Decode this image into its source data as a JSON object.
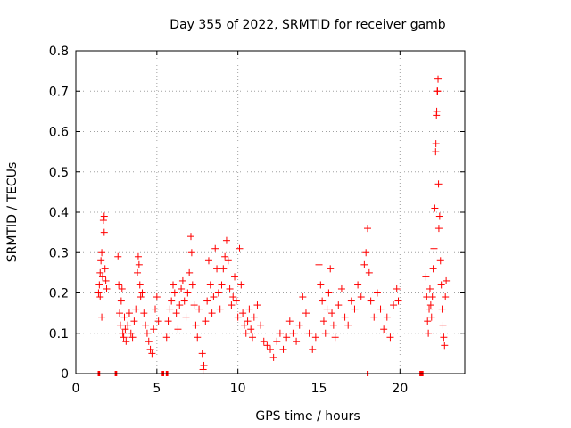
{
  "chart_data": {
    "type": "scatter",
    "title": "Day 355 of 2022, SRMTID for receiver gamb",
    "xlabel": "GPS time / hours",
    "ylabel": "SRMTID / TECUs",
    "xlim": [
      0,
      24
    ],
    "ylim": [
      0,
      0.8
    ],
    "xticks": [
      0,
      5,
      10,
      15,
      20
    ],
    "yticks": [
      0,
      0.1,
      0.2,
      0.3,
      0.4,
      0.5,
      0.6,
      0.7,
      0.8
    ],
    "grid": true,
    "marker_color": "#ff0000",
    "marker": "plus",
    "series": [
      {
        "name": "SRMTID",
        "points": [
          [
            1.4,
            0.2
          ],
          [
            1.45,
            0.22
          ],
          [
            1.5,
            0.19
          ],
          [
            1.5,
            0.25
          ],
          [
            1.55,
            0.28
          ],
          [
            1.6,
            0.14
          ],
          [
            1.6,
            0.3
          ],
          [
            1.65,
            0.24
          ],
          [
            1.7,
            0.38
          ],
          [
            1.75,
            0.39
          ],
          [
            1.75,
            0.35
          ],
          [
            1.8,
            0.26
          ],
          [
            1.85,
            0.23
          ],
          [
            1.9,
            0.21
          ],
          [
            2.6,
            0.29
          ],
          [
            2.65,
            0.22
          ],
          [
            2.7,
            0.15
          ],
          [
            2.75,
            0.12
          ],
          [
            2.8,
            0.18
          ],
          [
            2.85,
            0.21
          ],
          [
            2.9,
            0.1
          ],
          [
            2.95,
            0.09
          ],
          [
            3.0,
            0.14
          ],
          [
            3.05,
            0.11
          ],
          [
            3.1,
            0.08
          ],
          [
            3.2,
            0.12
          ],
          [
            3.3,
            0.15
          ],
          [
            3.4,
            0.1
          ],
          [
            3.5,
            0.09
          ],
          [
            3.6,
            0.13
          ],
          [
            3.7,
            0.16
          ],
          [
            3.8,
            0.25
          ],
          [
            3.85,
            0.29
          ],
          [
            3.9,
            0.27
          ],
          [
            3.95,
            0.22
          ],
          [
            4.0,
            0.19
          ],
          [
            4.1,
            0.2
          ],
          [
            4.2,
            0.15
          ],
          [
            4.3,
            0.12
          ],
          [
            4.4,
            0.1
          ],
          [
            4.5,
            0.08
          ],
          [
            4.6,
            0.06
          ],
          [
            4.7,
            0.05
          ],
          [
            4.8,
            0.11
          ],
          [
            4.9,
            0.16
          ],
          [
            5.0,
            0.19
          ],
          [
            5.1,
            0.13
          ],
          [
            5.6,
            0.09
          ],
          [
            5.7,
            0.13
          ],
          [
            5.8,
            0.16
          ],
          [
            5.9,
            0.18
          ],
          [
            6.0,
            0.22
          ],
          [
            6.1,
            0.2
          ],
          [
            6.2,
            0.15
          ],
          [
            6.3,
            0.11
          ],
          [
            6.4,
            0.17
          ],
          [
            6.5,
            0.21
          ],
          [
            6.6,
            0.23
          ],
          [
            6.7,
            0.18
          ],
          [
            6.8,
            0.14
          ],
          [
            6.9,
            0.2
          ],
          [
            7.0,
            0.25
          ],
          [
            7.1,
            0.34
          ],
          [
            7.15,
            0.3
          ],
          [
            7.2,
            0.22
          ],
          [
            7.3,
            0.17
          ],
          [
            7.4,
            0.12
          ],
          [
            7.5,
            0.09
          ],
          [
            7.6,
            0.16
          ],
          [
            7.8,
            0.05
          ],
          [
            7.85,
            0.01
          ],
          [
            7.9,
            0.02
          ],
          [
            8.0,
            0.13
          ],
          [
            8.1,
            0.18
          ],
          [
            8.2,
            0.28
          ],
          [
            8.3,
            0.22
          ],
          [
            8.4,
            0.15
          ],
          [
            8.5,
            0.19
          ],
          [
            8.6,
            0.31
          ],
          [
            8.7,
            0.26
          ],
          [
            8.8,
            0.2
          ],
          [
            8.9,
            0.16
          ],
          [
            9.0,
            0.22
          ],
          [
            9.1,
            0.26
          ],
          [
            9.2,
            0.29
          ],
          [
            9.3,
            0.33
          ],
          [
            9.4,
            0.28
          ],
          [
            9.5,
            0.21
          ],
          [
            9.6,
            0.17
          ],
          [
            9.7,
            0.19
          ],
          [
            9.8,
            0.24
          ],
          [
            9.9,
            0.18
          ],
          [
            10.0,
            0.14
          ],
          [
            10.1,
            0.31
          ],
          [
            10.2,
            0.22
          ],
          [
            10.3,
            0.15
          ],
          [
            10.4,
            0.12
          ],
          [
            10.5,
            0.1
          ],
          [
            10.6,
            0.13
          ],
          [
            10.7,
            0.16
          ],
          [
            10.8,
            0.11
          ],
          [
            10.9,
            0.09
          ],
          [
            11.0,
            0.14
          ],
          [
            11.2,
            0.17
          ],
          [
            11.4,
            0.12
          ],
          [
            11.6,
            0.08
          ],
          [
            11.8,
            0.07
          ],
          [
            12.0,
            0.06
          ],
          [
            12.2,
            0.04
          ],
          [
            12.4,
            0.08
          ],
          [
            12.6,
            0.1
          ],
          [
            12.8,
            0.06
          ],
          [
            13.0,
            0.09
          ],
          [
            13.2,
            0.13
          ],
          [
            13.4,
            0.1
          ],
          [
            13.6,
            0.08
          ],
          [
            13.8,
            0.12
          ],
          [
            14.0,
            0.19
          ],
          [
            14.2,
            0.15
          ],
          [
            14.4,
            0.1
          ],
          [
            14.6,
            0.06
          ],
          [
            14.8,
            0.09
          ],
          [
            15.0,
            0.27
          ],
          [
            15.1,
            0.22
          ],
          [
            15.2,
            0.18
          ],
          [
            15.3,
            0.13
          ],
          [
            15.4,
            0.1
          ],
          [
            15.5,
            0.16
          ],
          [
            15.6,
            0.2
          ],
          [
            15.7,
            0.26
          ],
          [
            15.8,
            0.15
          ],
          [
            15.9,
            0.12
          ],
          [
            16.0,
            0.09
          ],
          [
            16.2,
            0.17
          ],
          [
            16.4,
            0.21
          ],
          [
            16.6,
            0.14
          ],
          [
            16.8,
            0.12
          ],
          [
            17.0,
            0.18
          ],
          [
            17.2,
            0.16
          ],
          [
            17.4,
            0.22
          ],
          [
            17.6,
            0.19
          ],
          [
            17.8,
            0.27
          ],
          [
            17.9,
            0.3
          ],
          [
            18.0,
            0.36
          ],
          [
            18.1,
            0.25
          ],
          [
            18.2,
            0.18
          ],
          [
            18.4,
            0.14
          ],
          [
            18.6,
            0.2
          ],
          [
            18.8,
            0.16
          ],
          [
            19.0,
            0.11
          ],
          [
            19.2,
            0.14
          ],
          [
            19.4,
            0.09
          ],
          [
            19.6,
            0.17
          ],
          [
            19.8,
            0.21
          ],
          [
            19.9,
            0.18
          ],
          [
            21.6,
            0.24
          ],
          [
            21.65,
            0.19
          ],
          [
            21.7,
            0.13
          ],
          [
            21.75,
            0.1
          ],
          [
            21.8,
            0.16
          ],
          [
            21.85,
            0.21
          ],
          [
            21.9,
            0.17
          ],
          [
            21.95,
            0.14
          ],
          [
            22.0,
            0.19
          ],
          [
            22.05,
            0.26
          ],
          [
            22.1,
            0.31
          ],
          [
            22.15,
            0.41
          ],
          [
            22.2,
            0.55
          ],
          [
            22.22,
            0.57
          ],
          [
            22.25,
            0.64
          ],
          [
            22.27,
            0.65
          ],
          [
            22.3,
            0.7
          ],
          [
            22.32,
            0.7
          ],
          [
            22.35,
            0.73
          ],
          [
            22.38,
            0.47
          ],
          [
            22.4,
            0.36
          ],
          [
            22.45,
            0.39
          ],
          [
            22.5,
            0.28
          ],
          [
            22.55,
            0.22
          ],
          [
            22.6,
            0.16
          ],
          [
            22.65,
            0.12
          ],
          [
            22.7,
            0.09
          ],
          [
            22.75,
            0.07
          ],
          [
            22.8,
            0.19
          ],
          [
            22.85,
            0.23
          ]
        ],
        "zero_bands": [
          [
            1.35,
            1.5
          ],
          [
            2.4,
            2.55
          ],
          [
            5.3,
            5.45
          ],
          [
            5.55,
            5.7
          ],
          [
            17.95,
            18.05
          ],
          [
            21.2,
            21.45
          ]
        ]
      }
    ]
  }
}
